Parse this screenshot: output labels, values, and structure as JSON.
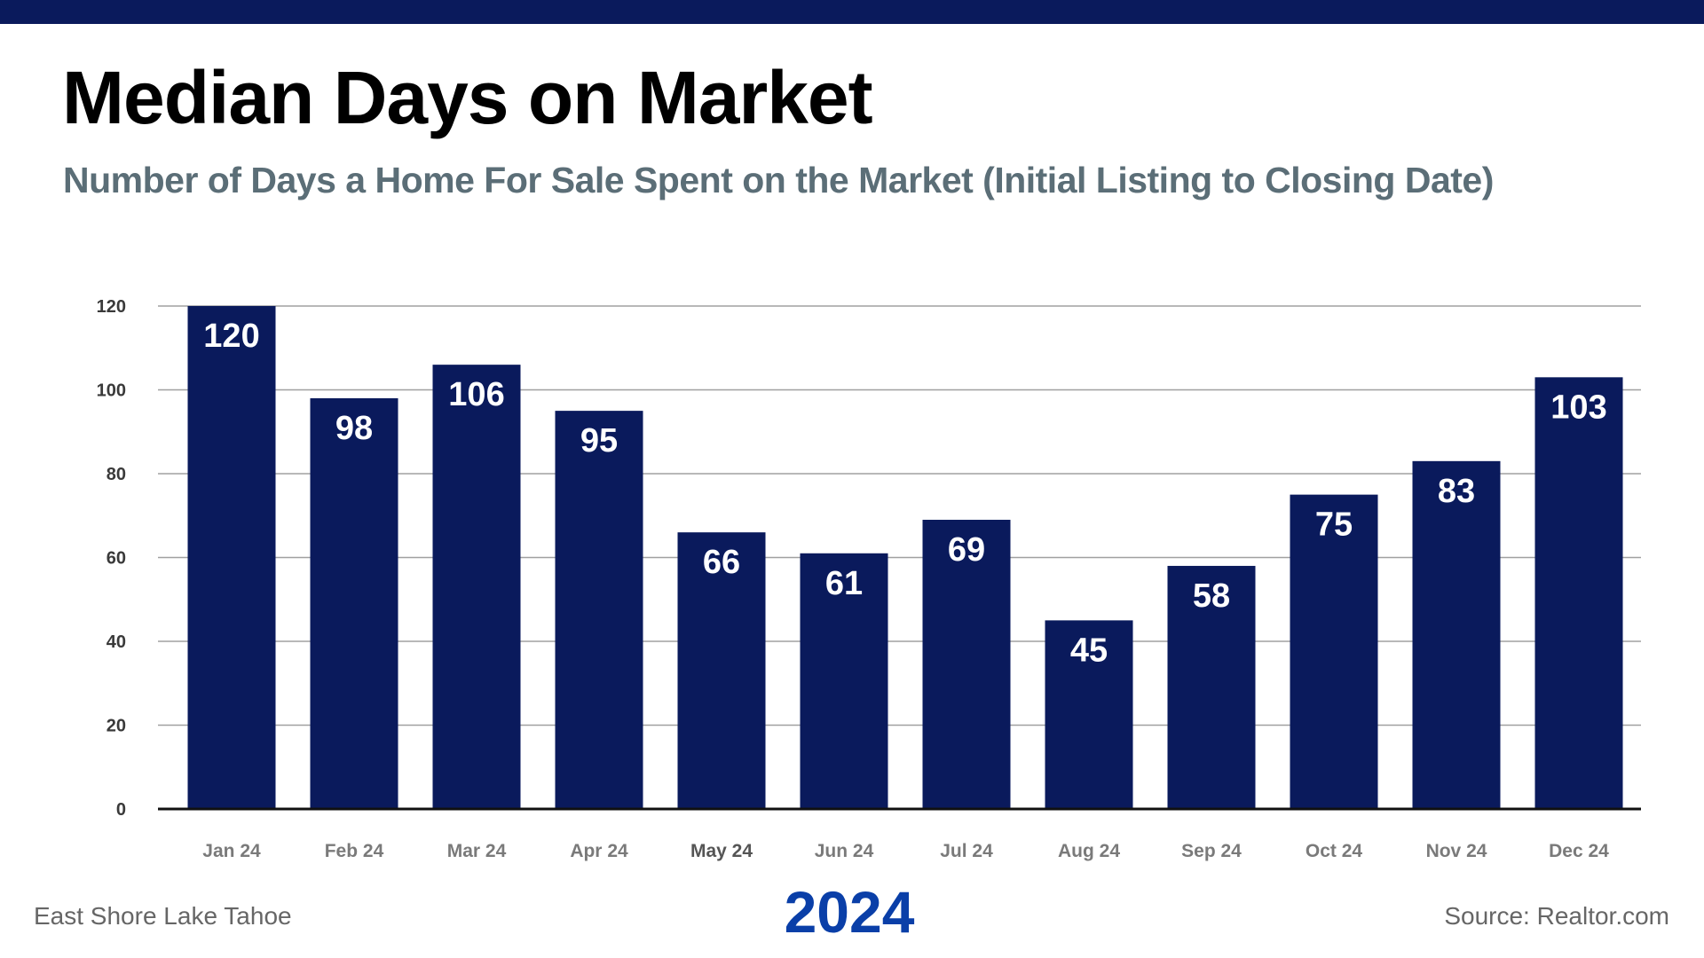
{
  "header": {
    "title": "Median Days on Market",
    "subtitle": "Number of Days a Home For Sale Spent on the Market (Initial Listing to Closing Date)"
  },
  "footer": {
    "location": "East Shore Lake Tahoe",
    "year": "2024",
    "source": "Source: Realtor.com"
  },
  "colors": {
    "bar": "#0a1a5c",
    "top_bar": "#0a1a5c",
    "year": "#0a3fa8",
    "subtitle": "#5b6e77"
  },
  "chart_data": {
    "type": "bar",
    "title": "Median Days on Market",
    "xlabel": "2024",
    "ylabel": "",
    "categories": [
      "Jan 24",
      "Feb 24",
      "Mar 24",
      "Apr 24",
      "May 24",
      "Jun 24",
      "Jul 24",
      "Aug 24",
      "Sep 24",
      "Oct 24",
      "Nov 24",
      "Dec 24"
    ],
    "values": [
      120,
      98,
      106,
      95,
      66,
      61,
      69,
      45,
      58,
      75,
      83,
      103
    ],
    "ylim": [
      0,
      120
    ],
    "yticks": [
      0,
      20,
      40,
      60,
      80,
      100,
      120
    ],
    "grid": true,
    "data_labels": true
  }
}
